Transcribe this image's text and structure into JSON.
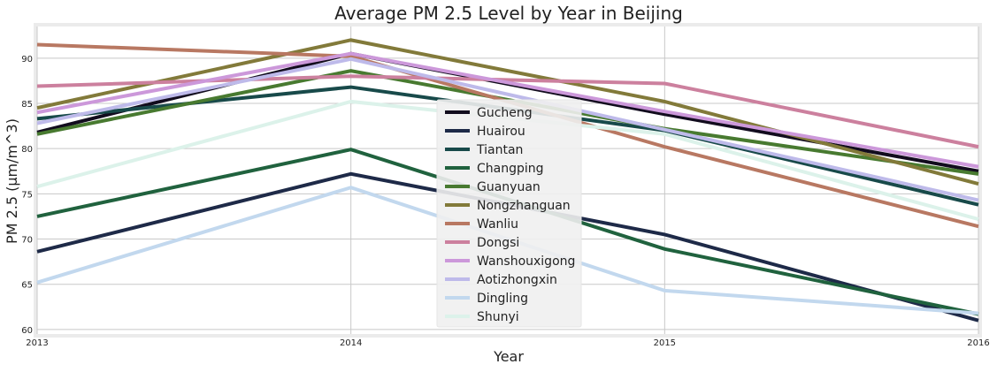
{
  "chart_data": {
    "type": "line",
    "title": "Average PM 2.5 Level by Year in Beijing",
    "xlabel": "Year",
    "ylabel": "PM 2.5 (μm/m^3)",
    "x": [
      2013,
      2014,
      2015,
      2016
    ],
    "x_tick_labels": [
      "2013",
      "2014",
      "2015",
      "2016"
    ],
    "xlim": [
      2013,
      2016
    ],
    "ylim": [
      59.5,
      93.5
    ],
    "y_ticks": [
      60,
      65,
      70,
      75,
      80,
      85,
      90
    ],
    "y_tick_labels": [
      "60",
      "65",
      "70",
      "75",
      "80",
      "85",
      "90"
    ],
    "grid": true,
    "legend_position": "center",
    "series": [
      {
        "name": "Gucheng",
        "color": "#120c1e",
        "values": [
          81.8,
          90.5,
          83.8,
          77.5
        ]
      },
      {
        "name": "Huairou",
        "color": "#1e2a48",
        "values": [
          68.6,
          77.2,
          70.5,
          61.0
        ]
      },
      {
        "name": "Tiantan",
        "color": "#184a4a",
        "values": [
          83.3,
          86.8,
          82.0,
          73.8
        ]
      },
      {
        "name": "Changping",
        "color": "#20623e",
        "values": [
          72.5,
          79.9,
          68.9,
          61.7
        ]
      },
      {
        "name": "Guanyuan",
        "color": "#487a30",
        "values": [
          81.6,
          88.6,
          82.2,
          77.2
        ]
      },
      {
        "name": "Nongzhanguan",
        "color": "#827a3a",
        "values": [
          84.5,
          92.0,
          85.2,
          76.1
        ]
      },
      {
        "name": "Wanliu",
        "color": "#b87862",
        "values": [
          91.5,
          90.2,
          80.2,
          71.4
        ]
      },
      {
        "name": "Dongsi",
        "color": "#cc809e",
        "values": [
          86.9,
          88.0,
          87.2,
          80.2
        ]
      },
      {
        "name": "Wanshouxigong",
        "color": "#cc98da",
        "values": [
          84.0,
          90.5,
          84.1,
          78.0
        ]
      },
      {
        "name": "Aotizhongxin",
        "color": "#bebaea",
        "values": [
          82.8,
          89.9,
          82.1,
          74.3
        ]
      },
      {
        "name": "Dingling",
        "color": "#c2d8ee",
        "values": [
          65.2,
          75.7,
          64.3,
          61.8
        ]
      },
      {
        "name": "Shunyi",
        "color": "#dcf2ea",
        "values": [
          75.8,
          85.2,
          81.6,
          72.2
        ]
      }
    ]
  }
}
